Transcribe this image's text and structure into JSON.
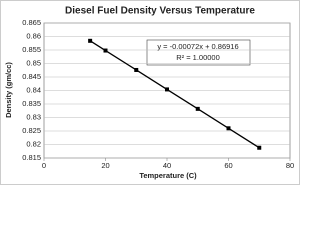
{
  "chart_data": {
    "type": "line",
    "title": "Diesel Fuel Density Versus Temperature",
    "x_label": "Temperature (C)",
    "y_label": "Density (gm/cc)",
    "x": [
      15,
      20,
      30,
      40,
      50,
      60,
      70
    ],
    "values": [
      0.8584,
      0.8548,
      0.8476,
      0.8404,
      0.8332,
      0.826,
      0.8188
    ],
    "color": "#000000",
    "annotations": [
      "y = -0.00072x + 0.86916",
      "R² = 1.00000"
    ],
    "xlim": [
      0,
      80
    ],
    "xticks": [
      0,
      20,
      40,
      60,
      80
    ],
    "ylim": [
      0.815,
      0.865
    ],
    "yticks": [
      0.815,
      0.82,
      0.825,
      0.83,
      0.835,
      0.84,
      0.845,
      0.85,
      0.855,
      0.86,
      0.865
    ],
    "grid": true
  }
}
